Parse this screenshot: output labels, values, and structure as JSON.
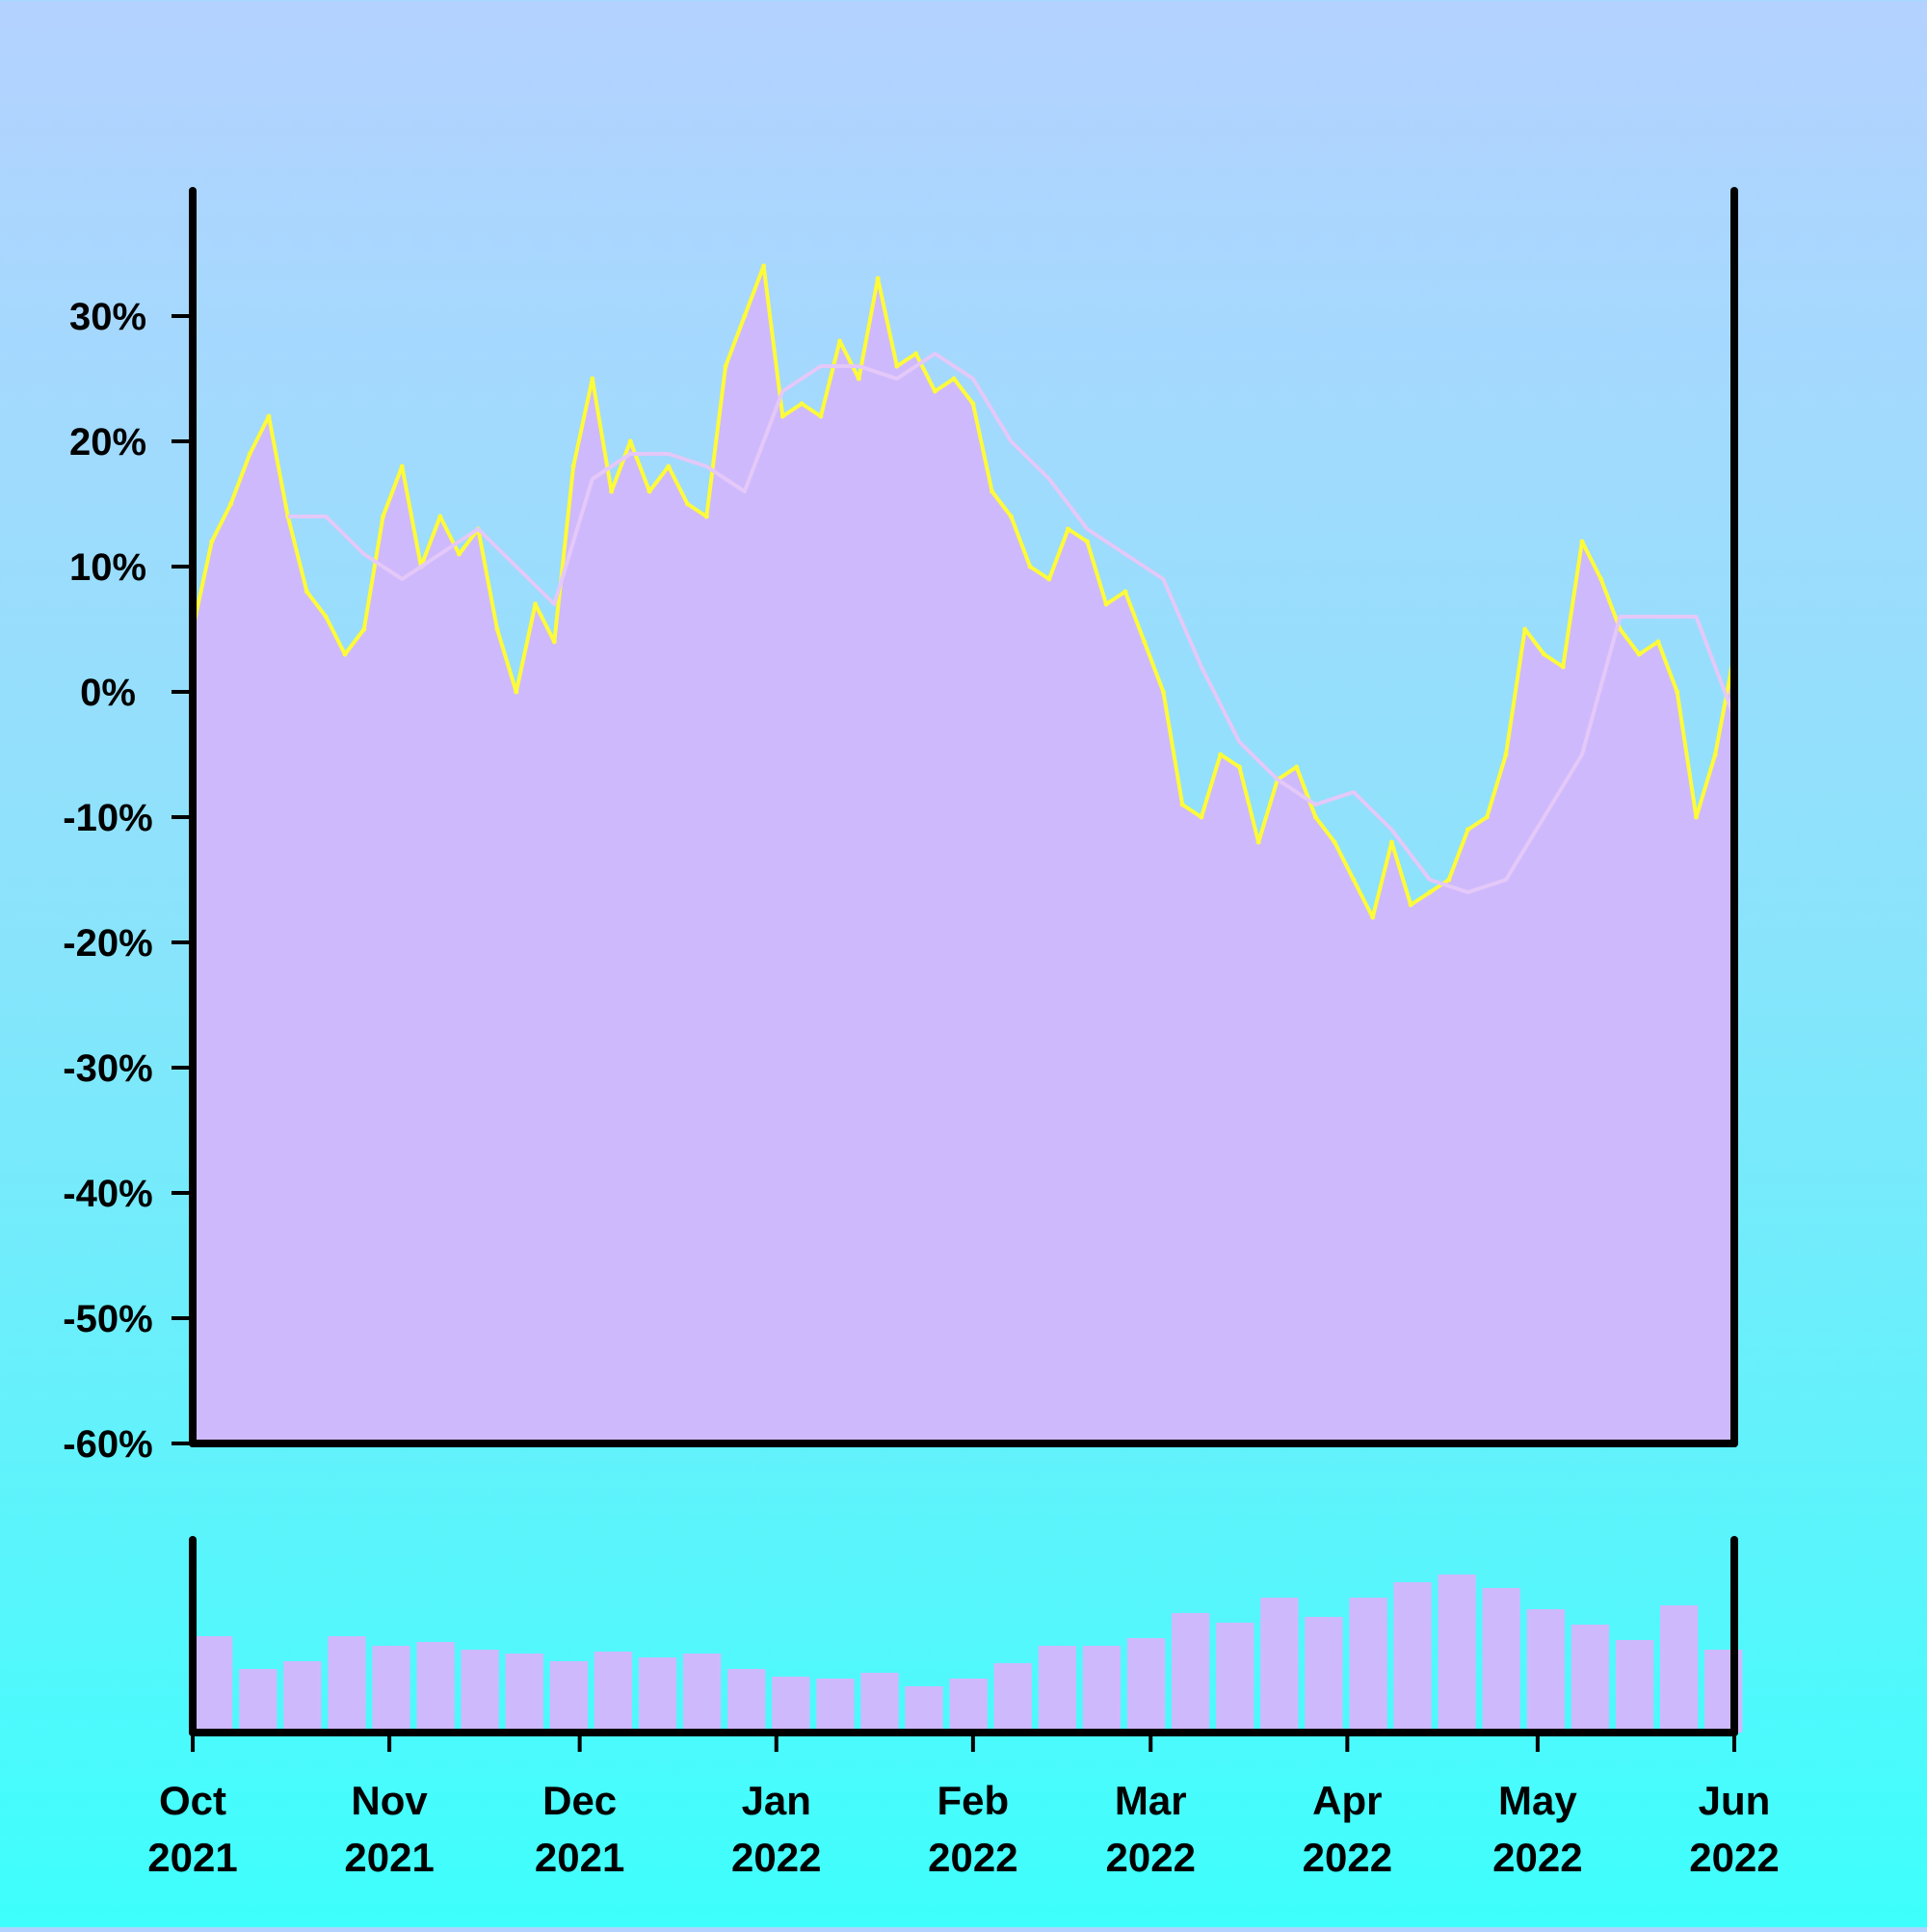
{
  "colors": {
    "fill": "#cfb9fd",
    "price_line": "#fdfb3a",
    "moving_average": "#e4c8f8",
    "axis": "#000000",
    "background_top": "#b4d2ff",
    "background_bottom": "#3dfffc"
  },
  "chart_data": [
    {
      "type": "area",
      "title": "",
      "xlabel": "",
      "ylabel": "",
      "y_unit": "%",
      "ylim": [
        -60,
        40
      ],
      "yticks": [
        30,
        20,
        10,
        0,
        -10,
        -20,
        -30,
        -40,
        -50,
        -60
      ],
      "ytick_labels": [
        "30%",
        "20%",
        "10%",
        "0%",
        "-10%",
        "-20%",
        "-30%",
        "-40%",
        "-50%",
        "-60%"
      ],
      "xlim": [
        "2021-10-01",
        "2022-06-01"
      ],
      "xticks": [
        {
          "date": "2021-10-01",
          "month": "Oct",
          "year": "2021"
        },
        {
          "date": "2021-11-01",
          "month": "Nov",
          "year": "2021"
        },
        {
          "date": "2021-12-01",
          "month": "Dec",
          "year": "2021"
        },
        {
          "date": "2022-01-01",
          "month": "Jan",
          "year": "2022"
        },
        {
          "date": "2022-02-01",
          "month": "Feb",
          "year": "2022"
        },
        {
          "date": "2022-03-01",
          "month": "Mar",
          "year": "2022"
        },
        {
          "date": "2022-04-01",
          "month": "Apr",
          "year": "2022"
        },
        {
          "date": "2022-05-01",
          "month": "May",
          "year": "2022"
        },
        {
          "date": "2022-06-01",
          "month": "Jun",
          "year": "2022"
        }
      ],
      "grid": false,
      "series": [
        {
          "role": "cumulative-return",
          "x": [
            "2021-10-01",
            "2021-10-04",
            "2021-10-07",
            "2021-10-10",
            "2021-10-13",
            "2021-10-16",
            "2021-10-19",
            "2021-10-22",
            "2021-10-25",
            "2021-10-28",
            "2021-10-31",
            "2021-11-03",
            "2021-11-06",
            "2021-11-09",
            "2021-11-12",
            "2021-11-15",
            "2021-11-18",
            "2021-11-21",
            "2021-11-24",
            "2021-11-27",
            "2021-11-30",
            "2021-12-03",
            "2021-12-06",
            "2021-12-09",
            "2021-12-12",
            "2021-12-15",
            "2021-12-18",
            "2021-12-21",
            "2021-12-24",
            "2021-12-27",
            "2021-12-30",
            "2022-01-02",
            "2022-01-05",
            "2022-01-08",
            "2022-01-11",
            "2022-01-14",
            "2022-01-17",
            "2022-01-20",
            "2022-01-23",
            "2022-01-26",
            "2022-01-29",
            "2022-02-01",
            "2022-02-04",
            "2022-02-07",
            "2022-02-10",
            "2022-02-13",
            "2022-02-16",
            "2022-02-19",
            "2022-02-22",
            "2022-02-25",
            "2022-02-28",
            "2022-03-03",
            "2022-03-06",
            "2022-03-09",
            "2022-03-12",
            "2022-03-15",
            "2022-03-18",
            "2022-03-21",
            "2022-03-24",
            "2022-03-27",
            "2022-03-30",
            "2022-04-02",
            "2022-04-05",
            "2022-04-08",
            "2022-04-11",
            "2022-04-14",
            "2022-04-17",
            "2022-04-20",
            "2022-04-23",
            "2022-04-26",
            "2022-04-29",
            "2022-05-02",
            "2022-05-05",
            "2022-05-08",
            "2022-05-11",
            "2022-05-14",
            "2022-05-17",
            "2022-05-20",
            "2022-05-23",
            "2022-05-26",
            "2022-05-29",
            "2022-06-01"
          ],
          "values": [
            5,
            12,
            15,
            19,
            22,
            14,
            8,
            6,
            3,
            5,
            14,
            18,
            10,
            14,
            11,
            13,
            5,
            0,
            7,
            4,
            18,
            25,
            16,
            20,
            16,
            18,
            15,
            14,
            26,
            30,
            34,
            22,
            23,
            22,
            28,
            25,
            33,
            26,
            27,
            24,
            25,
            23,
            16,
            14,
            10,
            9,
            13,
            12,
            7,
            8,
            4,
            0,
            -9,
            -10,
            -5,
            -6,
            -12,
            -7,
            -6,
            -10,
            -12,
            -15,
            -18,
            -12,
            -17,
            -16,
            -15,
            -11,
            -10,
            -5,
            5,
            3,
            2,
            12,
            9,
            5,
            3,
            4,
            0,
            -10,
            -5,
            3
          ]
        },
        {
          "role": "moving-average",
          "x": [
            "2021-10-16",
            "2021-10-22",
            "2021-10-28",
            "2021-11-03",
            "2021-11-09",
            "2021-11-15",
            "2021-11-21",
            "2021-11-27",
            "2021-12-03",
            "2021-12-09",
            "2021-12-15",
            "2021-12-21",
            "2021-12-27",
            "2022-01-02",
            "2022-01-08",
            "2022-01-14",
            "2022-01-20",
            "2022-01-26",
            "2022-02-01",
            "2022-02-07",
            "2022-02-13",
            "2022-02-19",
            "2022-02-25",
            "2022-03-03",
            "2022-03-09",
            "2022-03-15",
            "2022-03-21",
            "2022-03-27",
            "2022-04-02",
            "2022-04-08",
            "2022-04-14",
            "2022-04-20",
            "2022-04-26",
            "2022-05-02",
            "2022-05-08",
            "2022-05-14",
            "2022-05-20",
            "2022-05-26",
            "2022-06-01"
          ],
          "values": [
            14,
            14,
            11,
            9,
            11,
            13,
            10,
            7,
            17,
            19,
            19,
            18,
            16,
            24,
            26,
            26,
            25,
            27,
            25,
            20,
            17,
            13,
            11,
            9,
            2,
            -4,
            -7,
            -9,
            -8,
            -11,
            -15,
            -16,
            -15,
            -10,
            -5,
            6,
            6,
            6,
            -2
          ]
        }
      ],
      "yaxis_side": "left"
    },
    {
      "type": "bar",
      "role": "volume",
      "title": "",
      "xlabel": "",
      "ylabel": "",
      "xlim": [
        "2021-10-01",
        "2022-06-01"
      ],
      "ylim": [
        0,
        100
      ],
      "yticks": [],
      "x": [
        "2021-10-01",
        "2021-10-08",
        "2021-10-15",
        "2021-10-22",
        "2021-10-29",
        "2021-11-05",
        "2021-11-12",
        "2021-11-19",
        "2021-11-26",
        "2021-12-03",
        "2021-12-10",
        "2021-12-17",
        "2021-12-24",
        "2021-12-31",
        "2022-01-07",
        "2022-01-14",
        "2022-01-21",
        "2022-01-28",
        "2022-02-04",
        "2022-02-11",
        "2022-02-18",
        "2022-02-25",
        "2022-03-04",
        "2022-03-11",
        "2022-03-18",
        "2022-03-25",
        "2022-04-01",
        "2022-04-08",
        "2022-04-15",
        "2022-04-22",
        "2022-04-29",
        "2022-05-06",
        "2022-05-13",
        "2022-05-20",
        "2022-05-27"
      ],
      "values": [
        50,
        33,
        37,
        50,
        45,
        47,
        43,
        41,
        37,
        42,
        39,
        41,
        33,
        29,
        28,
        31,
        24,
        28,
        36,
        45,
        45,
        49,
        62,
        57,
        70,
        60,
        70,
        78,
        82,
        75,
        64,
        56,
        48,
        66,
        43
      ]
    }
  ]
}
